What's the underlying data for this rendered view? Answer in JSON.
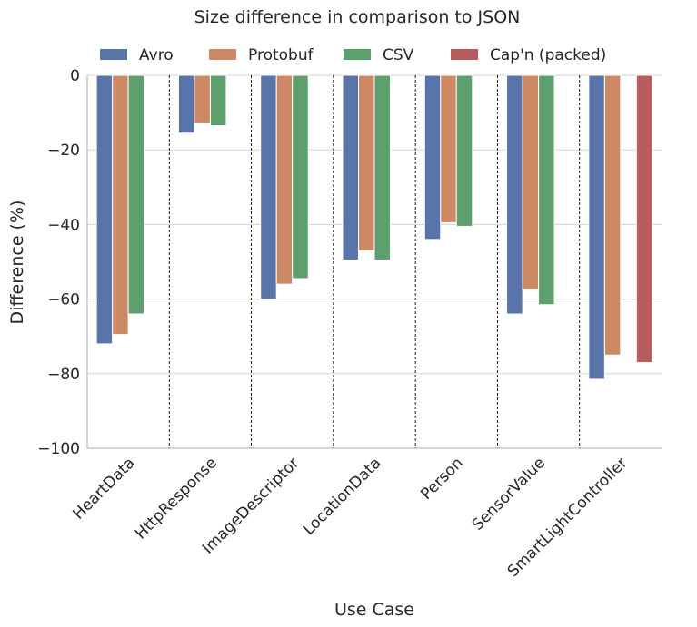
{
  "chart_data": {
    "type": "bar",
    "title": "Size difference in comparison to JSON",
    "xlabel": "Use Case",
    "ylabel": "Difference (%)",
    "ylim": [
      -100,
      0
    ],
    "yticks": [
      0,
      -20,
      -40,
      -60,
      -80,
      -100
    ],
    "ytick_labels": [
      "0",
      "−20",
      "−40",
      "−60",
      "−80",
      "−100"
    ],
    "grid": "horizontal",
    "legend_position": "top",
    "categories": [
      "HeartData",
      "HttpResponse",
      "ImageDescriptor",
      "LocationData",
      "Person",
      "SensorValue",
      "SmartLightController"
    ],
    "series": [
      {
        "name": "Avro",
        "color": "#5874a9",
        "values": [
          -72,
          -15.5,
          -60,
          -49.5,
          -44,
          -64,
          -81.5
        ]
      },
      {
        "name": "Protobuf",
        "color": "#cd8963",
        "values": [
          -69.5,
          -13,
          -56,
          -47,
          -39.5,
          -57.5,
          -75
        ]
      },
      {
        "name": "CSV",
        "color": "#5e9f6e",
        "values": [
          -64,
          -13.5,
          -54.5,
          -49.5,
          -40.5,
          -61.5,
          null
        ]
      },
      {
        "name": "Cap'n (packed)",
        "color": "#b95c5e",
        "values": [
          null,
          null,
          null,
          null,
          null,
          null,
          -77
        ]
      }
    ]
  }
}
